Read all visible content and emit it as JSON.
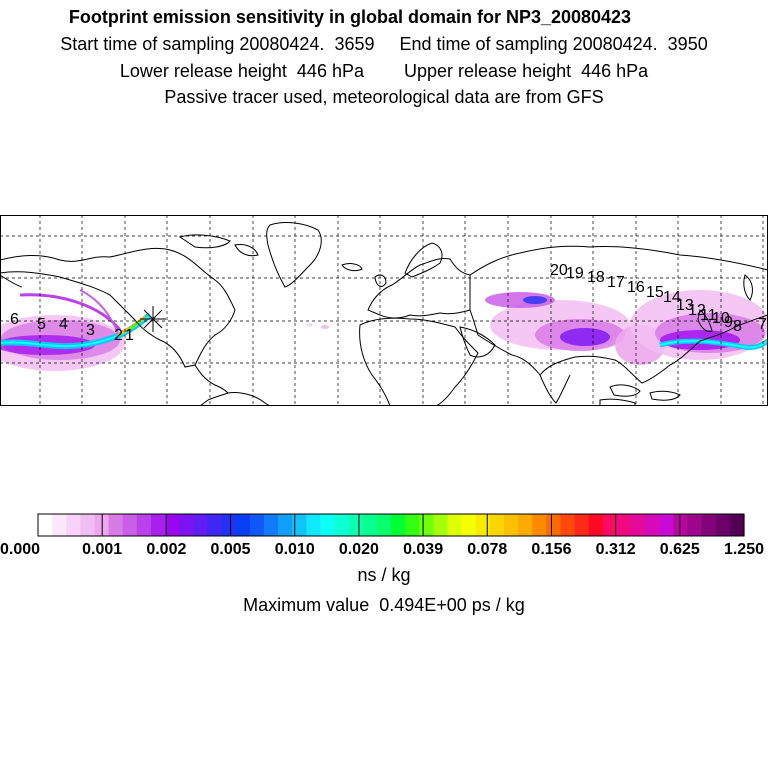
{
  "title": "Footprint emission sensitivity in global domain for NP3_20080423",
  "start_time": "Start time of sampling 20080424.  3659",
  "end_time": "End time of sampling 20080424.  3950",
  "lower_release": "Lower release height  446 hPa",
  "upper_release": "Upper release height  446 hPa",
  "tracer_note": "Passive tracer used, meteorological data are from GFS",
  "unit": "ns / kg",
  "max_value": "Maximum value  0.494E+00 ps / kg",
  "colorbar": {
    "tick_labels": [
      "0.000",
      "0.001",
      "0.002",
      "0.005",
      "0.010",
      "0.020",
      "0.039",
      "0.078",
      "0.156",
      "0.312",
      "0.625",
      "1.250"
    ],
    "colors": [
      "#ffffff",
      "#fbe9fb",
      "#f7d3f7",
      "#f2bdf2",
      "#eda7ed",
      "#d77be6",
      "#c95ee8",
      "#bb41ea",
      "#a822ee",
      "#9b06f0",
      "#7d12f2",
      "#5f1ef3",
      "#4127f4",
      "#2432f5",
      "#0a3df6",
      "#1157f7",
      "#117bf8",
      "#119ffa",
      "#11c3fb",
      "#11e7fd",
      "#0efff5",
      "#0dffd3",
      "#0cffb1",
      "#0bff8f",
      "#0aff6d",
      "#00ff32",
      "#33ff13",
      "#6dff0c",
      "#a6ff0a",
      "#dfff07",
      "#f5ff04",
      "#f7ea03",
      "#f9d502",
      "#fbc001",
      "#fdab00",
      "#fd8a00",
      "#fd6a00",
      "#fd4a0c",
      "#fd2a18",
      "#fd0a24",
      "#fd0a64",
      "#f00a80",
      "#e30a9c",
      "#d60ab8",
      "#c90ad4",
      "#b5089e",
      "#9c068c",
      "#83047a",
      "#6a0268",
      "#510056"
    ]
  },
  "trajectory_labels": [
    "1",
    "2",
    "3",
    "4",
    "5",
    "6",
    "7",
    "8",
    "9",
    "10",
    "11",
    "12",
    "13",
    "14",
    "15",
    "16",
    "17",
    "18",
    "19",
    "20"
  ],
  "map": {
    "projection": "global lat-lon",
    "gridlines": true
  }
}
